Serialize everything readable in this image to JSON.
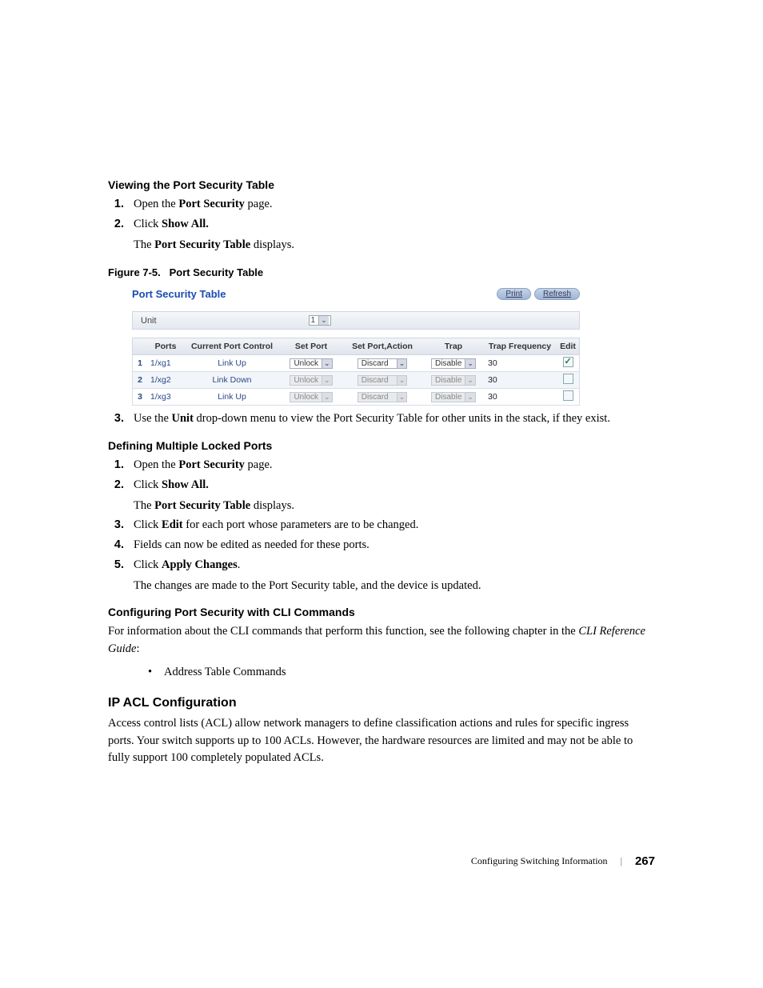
{
  "section1": {
    "heading": "Viewing the Port Security Table",
    "steps": [
      {
        "num": "1.",
        "parts": [
          "Open the ",
          "Port Security",
          " page."
        ]
      },
      {
        "num": "2.",
        "parts": [
          "Click ",
          "Show All."
        ],
        "sub": [
          "The ",
          "Port Security Table",
          " displays."
        ]
      }
    ]
  },
  "figure": {
    "caption_label": "Figure 7-5.",
    "caption_text": "Port Security Table"
  },
  "screenshot": {
    "title": "Port Security Table",
    "print_btn": "Print",
    "refresh_btn": "Refresh",
    "unit_label": "Unit",
    "unit_value": "1",
    "headers": [
      "",
      "Ports",
      "Current Port Control",
      "Set Port",
      "Set Port,Action",
      "Trap",
      "Trap Frequency",
      "Edit"
    ],
    "rows": [
      {
        "n": "1",
        "port": "1/xg1",
        "ctrl": "Link Up",
        "setport": "Unlock",
        "action": "Discard",
        "trap": "Disable",
        "tf": "30",
        "edit": true,
        "enabled": true
      },
      {
        "n": "2",
        "port": "1/xg2",
        "ctrl": "Link Down",
        "setport": "Unlock",
        "action": "Discard",
        "trap": "Disable",
        "tf": "30",
        "edit": false,
        "enabled": false
      },
      {
        "n": "3",
        "port": "1/xg3",
        "ctrl": "Link Up",
        "setport": "Unlock",
        "action": "Discard",
        "trap": "Disable",
        "tf": "30",
        "edit": false,
        "enabled": false
      }
    ]
  },
  "step3": {
    "num": "3.",
    "parts": [
      "Use the ",
      "Unit",
      " drop-down menu to view the Port Security Table for other units in the stack, if they exist."
    ]
  },
  "section2": {
    "heading": "Defining Multiple Locked Ports",
    "steps": [
      {
        "num": "1.",
        "parts": [
          "Open the ",
          "Port Security",
          " page."
        ]
      },
      {
        "num": "2.",
        "parts": [
          "Click ",
          "Show All."
        ],
        "sub": [
          "The ",
          "Port Security Table",
          " displays."
        ]
      },
      {
        "num": "3.",
        "parts": [
          "Click ",
          "Edit",
          " for each port whose parameters are to be changed."
        ]
      },
      {
        "num": "4.",
        "parts": [
          "Fields can now be edited as needed for these ports."
        ]
      },
      {
        "num": "5.",
        "parts": [
          "Click ",
          "Apply Changes",
          "."
        ],
        "sub": [
          "The changes are made to the Port Security table, and the device is updated."
        ]
      }
    ]
  },
  "section3": {
    "heading": "Configuring Port Security with CLI Commands",
    "para_parts": [
      "For information about the CLI commands that perform this function, see the following chapter in the ",
      "CLI Reference Guide",
      ":"
    ],
    "bullet": "Address Table Commands"
  },
  "section4": {
    "heading": "IP ACL Configuration",
    "para": "Access control lists (ACL) allow network managers to define classification actions and rules for specific ingress ports. Your switch supports up to 100 ACLs. However, the hardware resources are limited and may not be able to fully support 100 completely populated ACLs."
  },
  "footer": {
    "chapter": "Configuring Switching Information",
    "page": "267"
  }
}
